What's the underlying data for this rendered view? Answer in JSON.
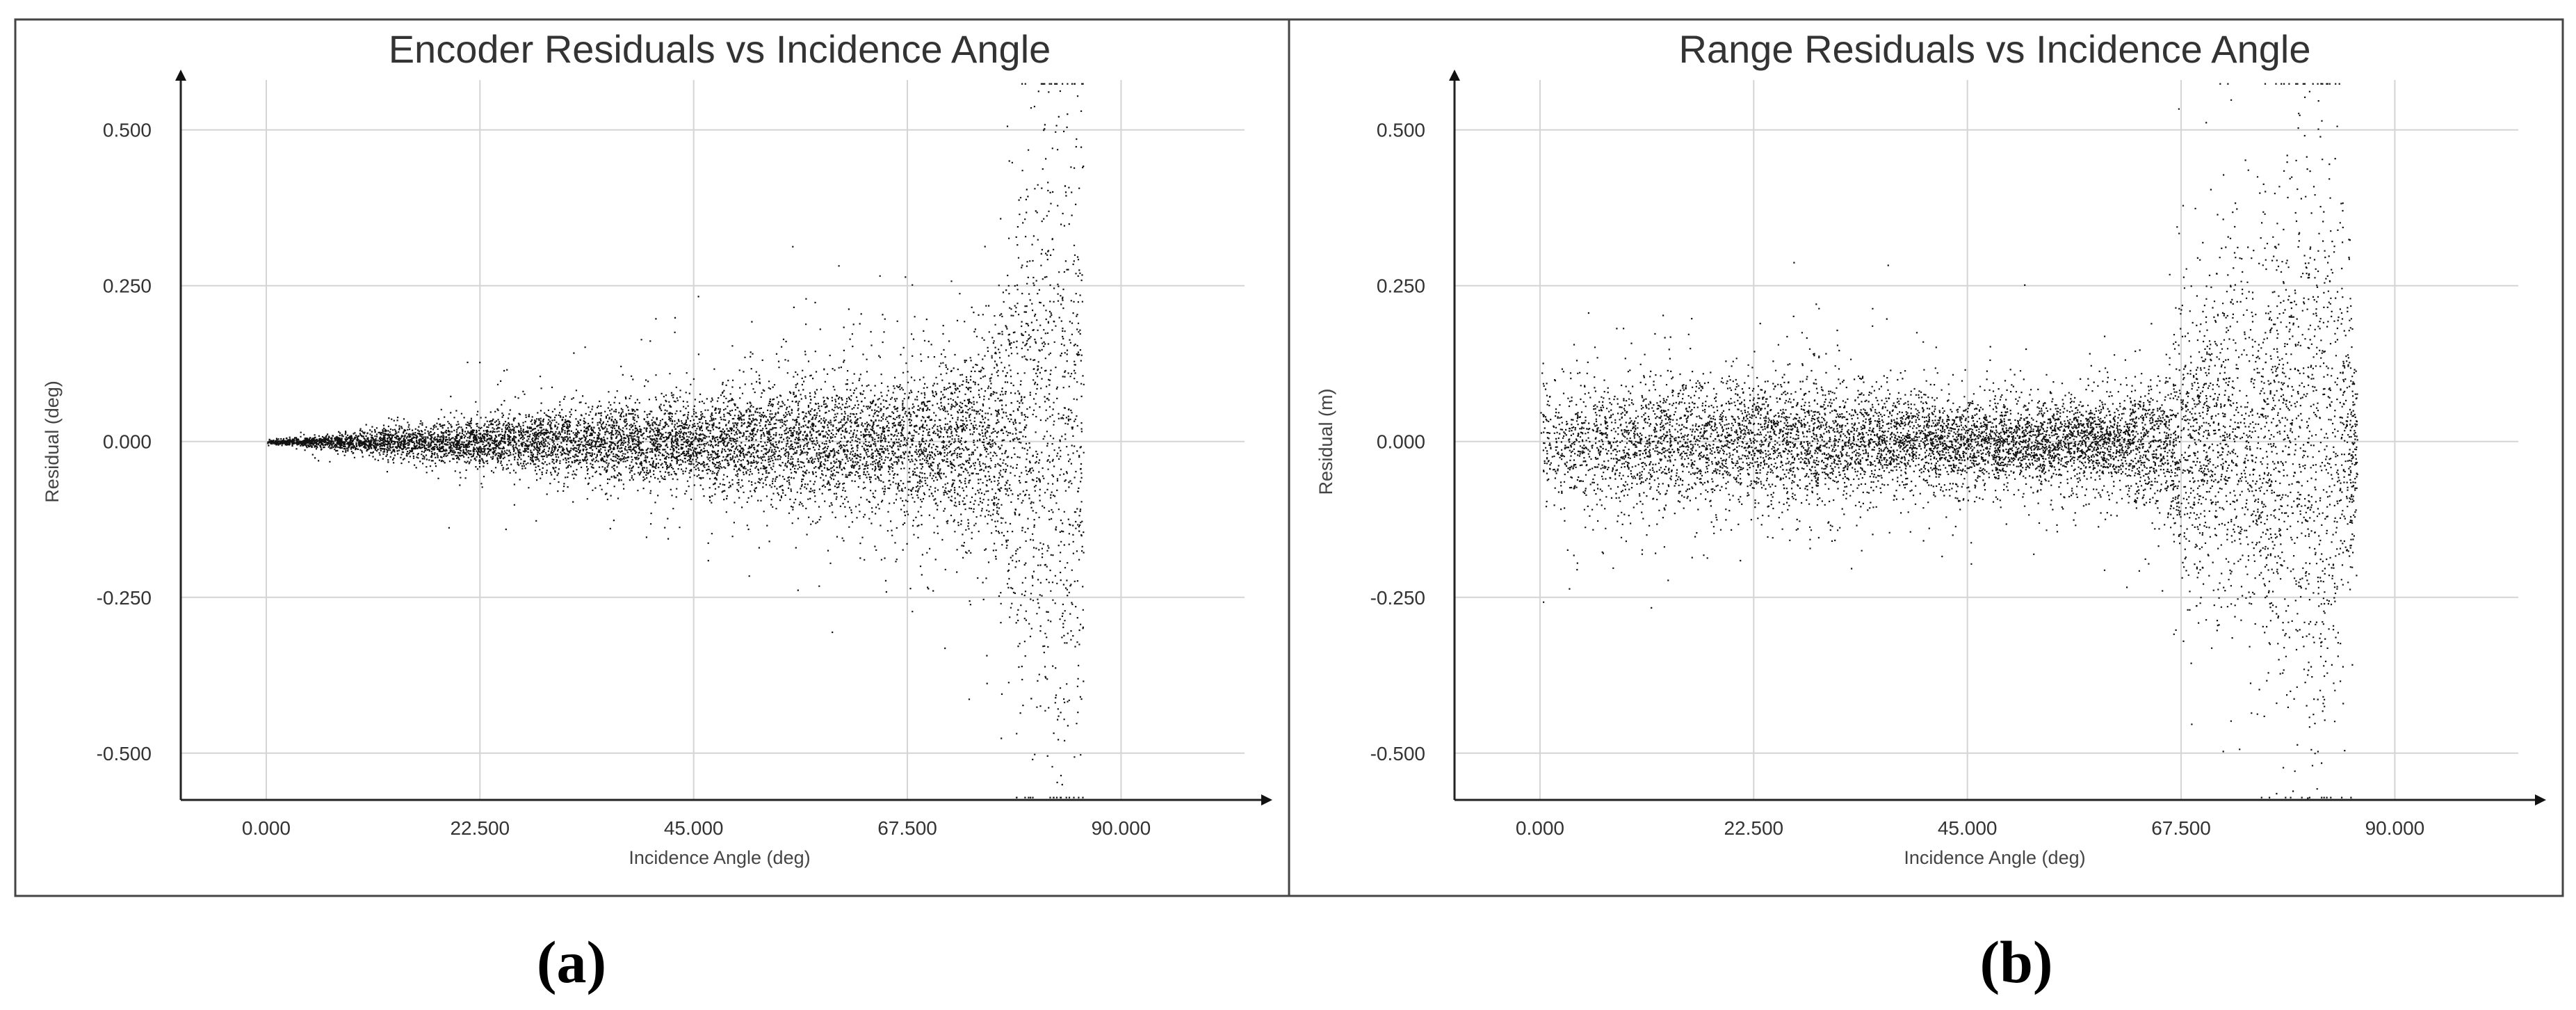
{
  "chart_data": [
    {
      "type": "scatter",
      "title": "Encoder Residuals vs Incidence Angle",
      "xlabel": "Incidence Angle (deg)",
      "ylabel": "Residual (deg)",
      "panel_label": "(a)",
      "xlim": [
        -9,
        103
      ],
      "ylim": [
        -0.575,
        0.58
      ],
      "x_ticks": [
        0,
        22.5,
        45,
        67.5,
        90
      ],
      "x_tick_labels": [
        "0.000",
        "22.500",
        "45.000",
        "67.500",
        "90.000"
      ],
      "y_ticks": [
        0.5,
        0.25,
        0,
        -0.25,
        -0.5
      ],
      "y_tick_labels": [
        "0.500",
        "0.250",
        "0.000",
        "-0.250",
        "-0.500"
      ],
      "grid": true,
      "legend": "none",
      "point_color": "#111111",
      "x_range": [
        0,
        86
      ],
      "description": "Residuals fan out from 0 as incidence angle increases; dense band near 0 up to ~77 deg, widening spread 45-77 deg, extreme spread to about ±0.55 near 80-86 deg.",
      "envelope": [
        {
          "x": 0,
          "spread": 0.002
        },
        {
          "x": 10,
          "spread": 0.015
        },
        {
          "x": 22.5,
          "spread": 0.035
        },
        {
          "x": 35,
          "spread": 0.05
        },
        {
          "x": 45,
          "spread": 0.06
        },
        {
          "x": 50,
          "spread": 0.08
        },
        {
          "x": 60,
          "spread": 0.09
        },
        {
          "x": 67.5,
          "spread": 0.1
        },
        {
          "x": 72,
          "spread": 0.12
        },
        {
          "x": 77,
          "spread": 0.18
        },
        {
          "x": 80,
          "spread": 0.35
        },
        {
          "x": 83,
          "spread": 0.5
        },
        {
          "x": 86,
          "spread": 0.45
        }
      ]
    },
    {
      "type": "scatter",
      "title": "Range Residuals vs Incidence Angle",
      "xlabel": "Incidence Angle (deg)",
      "ylabel": "Residual (m)",
      "panel_label": "(b)",
      "xlim": [
        -9,
        103
      ],
      "ylim": [
        -0.575,
        0.58
      ],
      "x_ticks": [
        0,
        22.5,
        45,
        67.5,
        90
      ],
      "x_tick_labels": [
        "0.000",
        "22.500",
        "45.000",
        "67.500",
        "90.000"
      ],
      "y_ticks": [
        0.5,
        0.25,
        0,
        -0.25,
        -0.5
      ],
      "y_tick_labels": [
        "0.500",
        "0.250",
        "0.000",
        "-0.250",
        "-0.500"
      ],
      "grid": true,
      "legend": "none",
      "point_color": "#111111",
      "x_range": [
        0,
        86
      ],
      "description": "Roughly constant band of about ±0.1 m from 0 to ~65 deg, then a dense cluster from 67.5-77 deg spreading to about -0.3..+0.3, extreme spread to about ±0.55 near 80-86 deg.",
      "envelope": [
        {
          "x": 0,
          "spread": 0.08
        },
        {
          "x": 22.5,
          "spread": 0.09
        },
        {
          "x": 45,
          "spread": 0.06
        },
        {
          "x": 60,
          "spread": 0.06
        },
        {
          "x": 66,
          "spread": 0.1
        },
        {
          "x": 67.5,
          "spread": 0.18
        },
        {
          "x": 72,
          "spread": 0.25
        },
        {
          "x": 77,
          "spread": 0.3
        },
        {
          "x": 80,
          "spread": 0.4
        },
        {
          "x": 83,
          "spread": 0.5
        },
        {
          "x": 86,
          "spread": 0.1
        }
      ]
    }
  ]
}
